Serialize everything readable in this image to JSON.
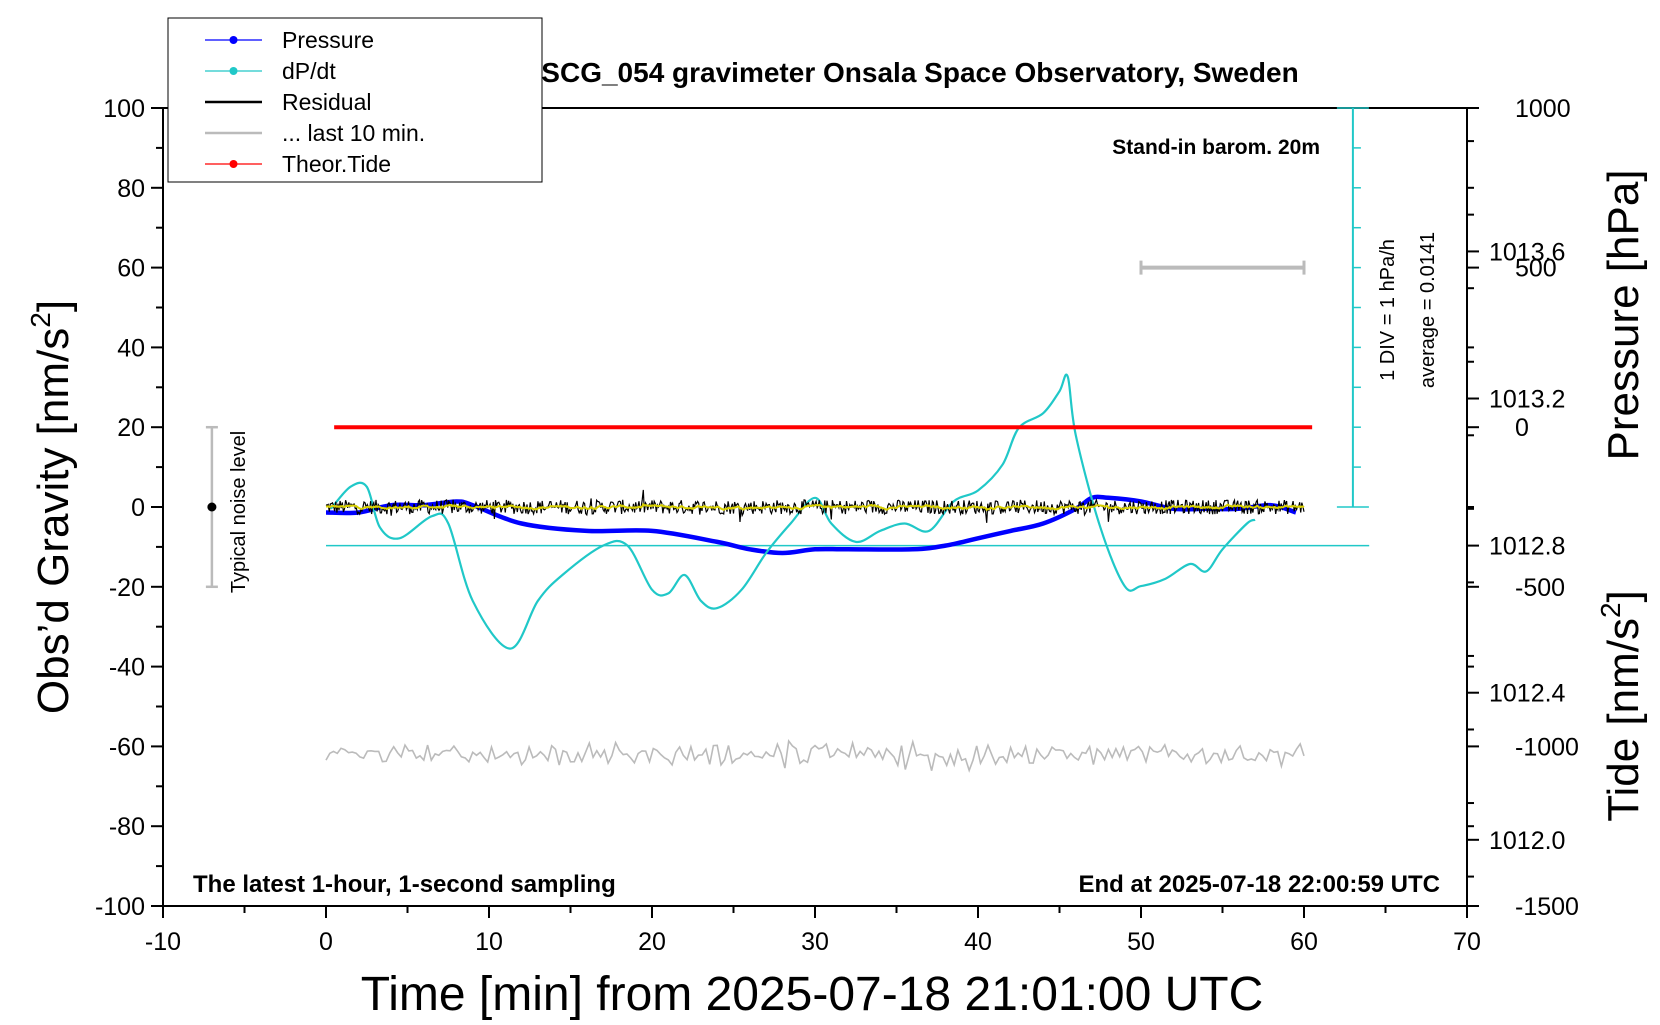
{
  "chart_data": {
    "type": "line",
    "title": "SCG_054 gravimeter Onsala Space Observatory, Sweden",
    "xlabel": "Time [min] from 2025-07-18 21:01:00 UTC",
    "ylabel": "Obs’d Gravity [nm/s",
    "ylabel_sup": "2",
    "ylabel_end": "]",
    "y2label": "Pressure [hPa]",
    "y3label": "Tide [nm/s",
    "y3label_sup": "2",
    "y3label_end": "]",
    "xlim": [
      -10,
      70
    ],
    "ylim": [
      -100,
      100
    ],
    "pressure_lim": [
      1011.82,
      1013.99
    ],
    "tide_lim": [
      -1500,
      1000
    ],
    "xticks": [
      "-10",
      "0",
      "10",
      "20",
      "30",
      "40",
      "50",
      "60",
      "70"
    ],
    "yticks": [
      "100",
      "80",
      "60",
      "40",
      "20",
      "0",
      "-20",
      "-40",
      "-60",
      "-80",
      "-100"
    ],
    "pressure_ticks": [
      "1013.6",
      "1013.2",
      "1012.8",
      "1012.4",
      "1012.0"
    ],
    "tide_ticks": [
      "1000",
      "500",
      "0",
      "-500",
      "-1000",
      "-1500"
    ],
    "annotations": {
      "baro": "Stand-in barom. 20m",
      "div": "1 DIV = 1 hPa/h",
      "average": "average = 0.0141",
      "noise": "Typical noise level",
      "latest": "The latest 1-hour, 1-second sampling",
      "end": "End at 2025-07-18 22:00:59 UTC"
    },
    "legend": [
      {
        "label": "Pressure",
        "color": "#0000ff",
        "marker": true
      },
      {
        "label": "dP/dt",
        "color": "#20c8c8",
        "marker": true
      },
      {
        "label": "Residual",
        "color": "#000000",
        "marker": false
      },
      {
        "label": "... last 10 min.",
        "color": "#bbbbbb",
        "marker": false
      },
      {
        "label": "Theor.Tide",
        "color": "#ff0000",
        "marker": true
      }
    ],
    "legend_position": "top-left",
    "series": [
      {
        "name": "Pressure",
        "axis": "pressure",
        "color": "#0000ff",
        "x": [
          0,
          2,
          4,
          6,
          8,
          9,
          12,
          16,
          20,
          24,
          26,
          28,
          30,
          32,
          36,
          38,
          40,
          42,
          44,
          46,
          47,
          48,
          50,
          52,
          54,
          56,
          58,
          59.5
        ],
        "y": [
          1012.89,
          1012.89,
          1012.91,
          1012.91,
          1012.92,
          1012.91,
          1012.86,
          1012.84,
          1012.84,
          1012.81,
          1012.79,
          1012.78,
          1012.79,
          1012.79,
          1012.79,
          1012.8,
          1012.82,
          1012.84,
          1012.86,
          1012.9,
          1012.93,
          1012.93,
          1012.92,
          1012.9,
          1012.9,
          1012.9,
          1012.91,
          1012.89
        ]
      },
      {
        "name": "dP/dt",
        "axis": "pressure",
        "color": "#20c8c8",
        "x": [
          0.3,
          1.5,
          2.5,
          3.3,
          4.5,
          6.5,
          7.5,
          9,
          11.3,
          13,
          14.5,
          17,
          18.5,
          20,
          21,
          22,
          23,
          24,
          25.5,
          27,
          28.5,
          30,
          31,
          32.5,
          34,
          35.5,
          37,
          38.5,
          40,
          41.5,
          42.5,
          44,
          45,
          45.5,
          46,
          47.5,
          49,
          50,
          51.5,
          53,
          54,
          55,
          56.5,
          57
        ],
        "y": [
          1012.9,
          1012.96,
          1012.96,
          1012.85,
          1012.82,
          1012.88,
          1012.86,
          1012.65,
          1012.52,
          1012.65,
          1012.72,
          1012.8,
          1012.8,
          1012.68,
          1012.67,
          1012.72,
          1012.65,
          1012.63,
          1012.68,
          1012.78,
          1012.86,
          1012.93,
          1012.86,
          1012.81,
          1012.84,
          1012.86,
          1012.84,
          1012.92,
          1012.95,
          1013.02,
          1013.12,
          1013.16,
          1013.22,
          1013.26,
          1013.1,
          1012.85,
          1012.69,
          1012.69,
          1012.71,
          1012.75,
          1012.73,
          1012.79,
          1012.86,
          1012.87
        ]
      },
      {
        "name": "Residual",
        "axis": "gravity",
        "color": "#000000",
        "x_range": [
          0,
          60
        ],
        "level": 0,
        "noise_amplitude": 1.8
      },
      {
        "name": "... last 10 min.",
        "axis": "gravity",
        "color": "#bbbbbb",
        "x_range": [
          0,
          60
        ],
        "level": -62,
        "noise_amplitude": 2.0
      },
      {
        "name": "Theor.Tide",
        "axis": "tide",
        "color": "#ff0000",
        "x": [
          0.5,
          60.5
        ],
        "y": [
          0,
          0
        ]
      }
    ],
    "dpdt_reference": {
      "axis": "pressure",
      "value": 1012.8,
      "x_range": [
        0,
        64
      ]
    },
    "noise_bar": {
      "x": -7,
      "y": 0,
      "low": -20,
      "high": 20
    },
    "scale_bar": {
      "x_range": [
        50,
        60
      ],
      "tide_value": 500
    }
  }
}
